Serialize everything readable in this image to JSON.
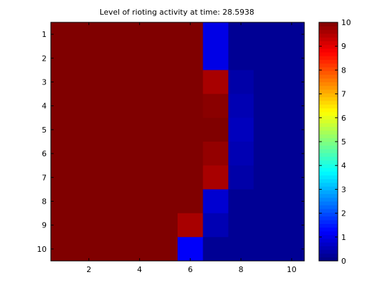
{
  "chart_data": {
    "type": "heatmap",
    "title": "Level of rioting activity at time: 28.5938",
    "xlabel": "",
    "ylabel": "",
    "x_ticks": [
      2,
      4,
      6,
      8,
      10
    ],
    "y_ticks": [
      1,
      2,
      3,
      4,
      5,
      6,
      7,
      8,
      9,
      10
    ],
    "colorbar_ticks": [
      0,
      1,
      2,
      3,
      4,
      5,
      6,
      7,
      8,
      9,
      10
    ],
    "clim": [
      0,
      10
    ],
    "colormap": "jet",
    "values": [
      [
        10,
        10,
        10,
        10,
        10,
        10,
        1.0,
        0.2,
        0.2,
        0.2
      ],
      [
        10,
        10,
        10,
        10,
        10,
        10,
        1.0,
        0.2,
        0.2,
        0.2
      ],
      [
        10,
        10,
        10,
        10,
        10,
        10,
        9.6,
        0.4,
        0.2,
        0.2
      ],
      [
        10,
        10,
        10,
        10,
        10,
        10,
        9.9,
        0.5,
        0.2,
        0.2
      ],
      [
        10,
        10,
        10,
        10,
        10,
        10,
        10,
        0.6,
        0.2,
        0.2
      ],
      [
        10,
        10,
        10,
        10,
        10,
        10,
        9.8,
        0.5,
        0.2,
        0.2
      ],
      [
        10,
        10,
        10,
        10,
        10,
        10,
        9.6,
        0.4,
        0.2,
        0.2
      ],
      [
        10,
        10,
        10,
        10,
        10,
        10,
        0.8,
        0.2,
        0.2,
        0.2
      ],
      [
        10,
        10,
        10,
        10,
        10,
        9.6,
        0.5,
        0.2,
        0.2,
        0.2
      ],
      [
        10,
        10,
        10,
        10,
        10,
        1.2,
        0.2,
        0.2,
        0.2,
        0.2
      ]
    ]
  }
}
